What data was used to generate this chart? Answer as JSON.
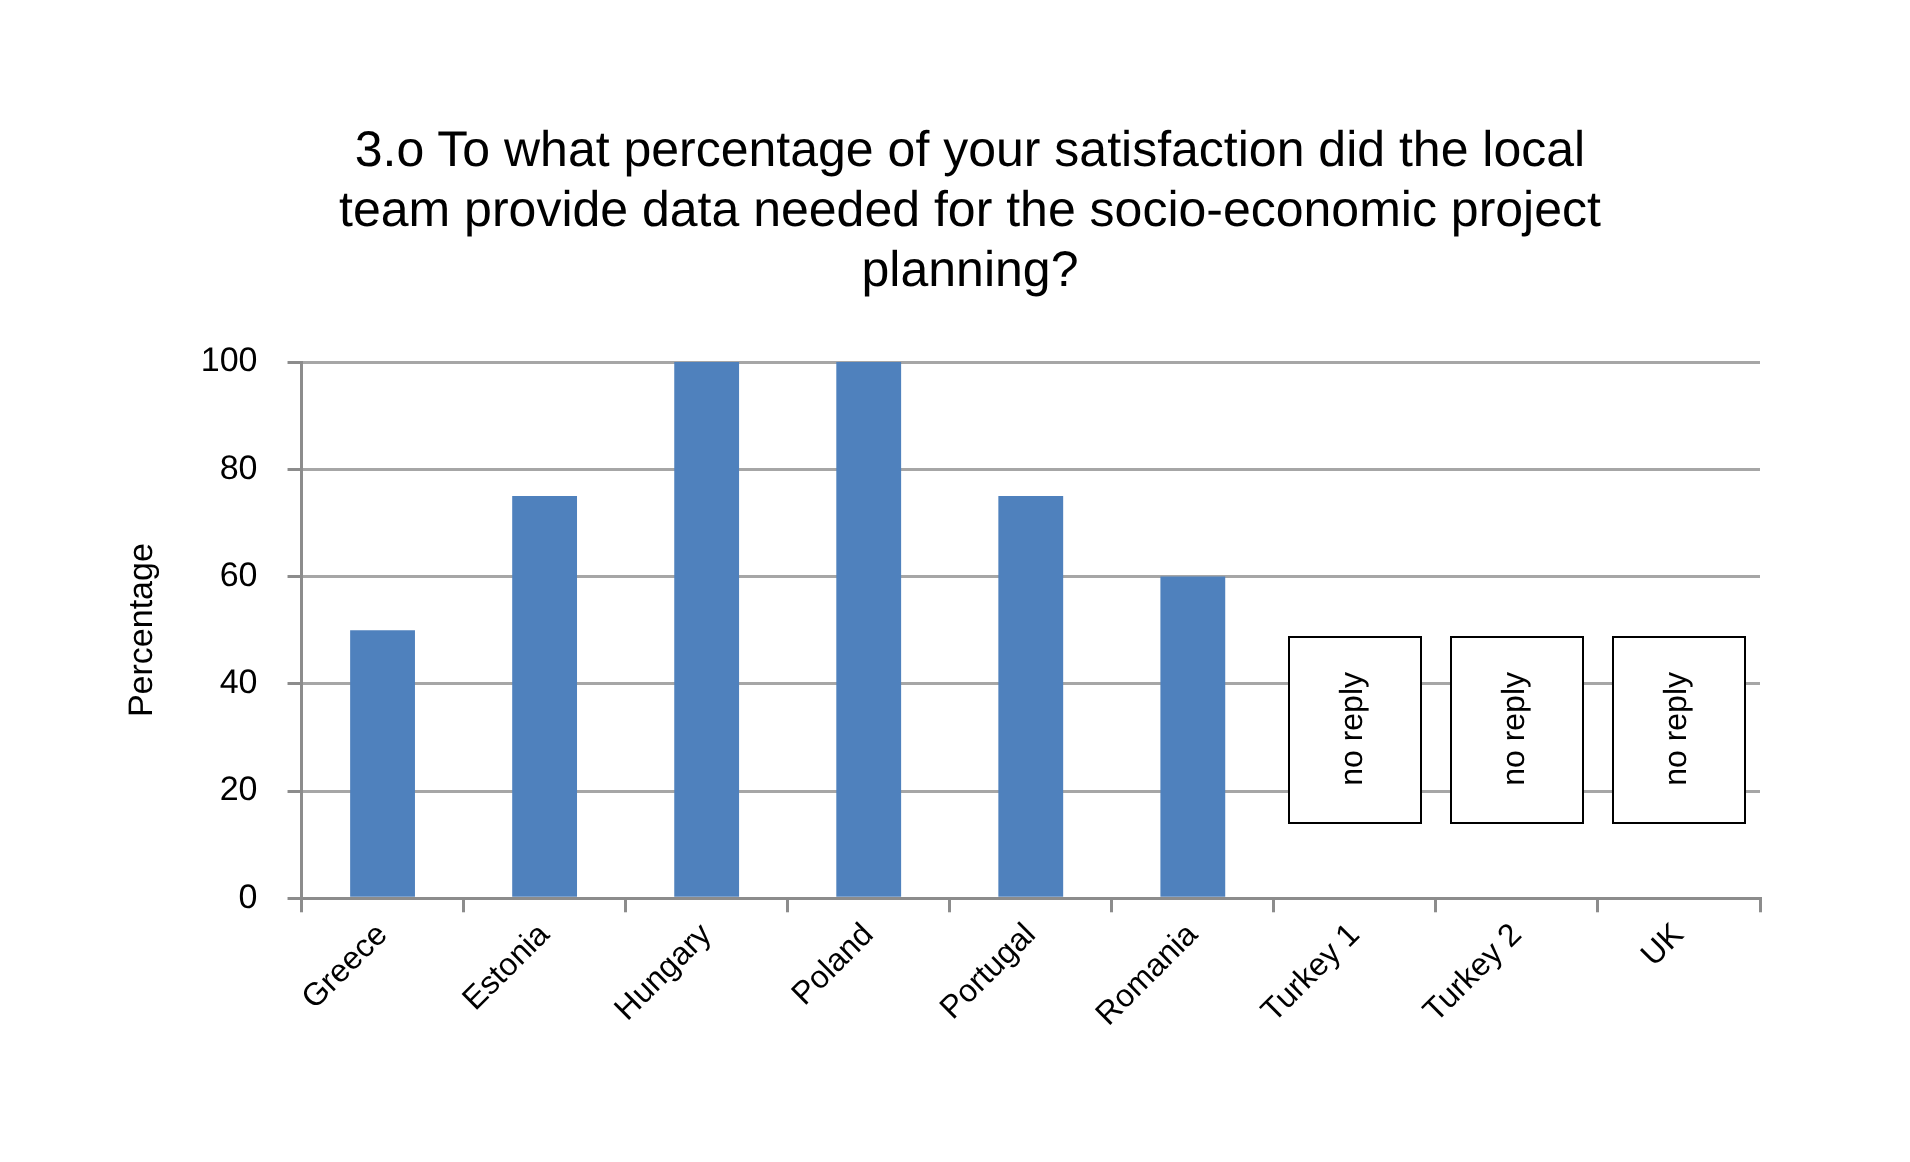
{
  "chart_data": {
    "type": "bar",
    "title": "3.o To what percentage of your satisfaction did the local team provide data needed for the socio-economic project planning?",
    "ylabel": "Percentage",
    "categories": [
      "Greece",
      "Estonia",
      "Hungary",
      "Poland",
      "Portugal",
      "Romania",
      "Turkey 1",
      "Turkey 2",
      "UK"
    ],
    "values": [
      50,
      75,
      100,
      100,
      75,
      60,
      null,
      null,
      null
    ],
    "color": "#4f81bd",
    "ylim": [
      0,
      100
    ],
    "yticks": [
      0,
      20,
      40,
      60,
      80,
      100
    ],
    "grid": "y",
    "annotations": [
      "no reply",
      "no reply",
      "no reply"
    ]
  }
}
